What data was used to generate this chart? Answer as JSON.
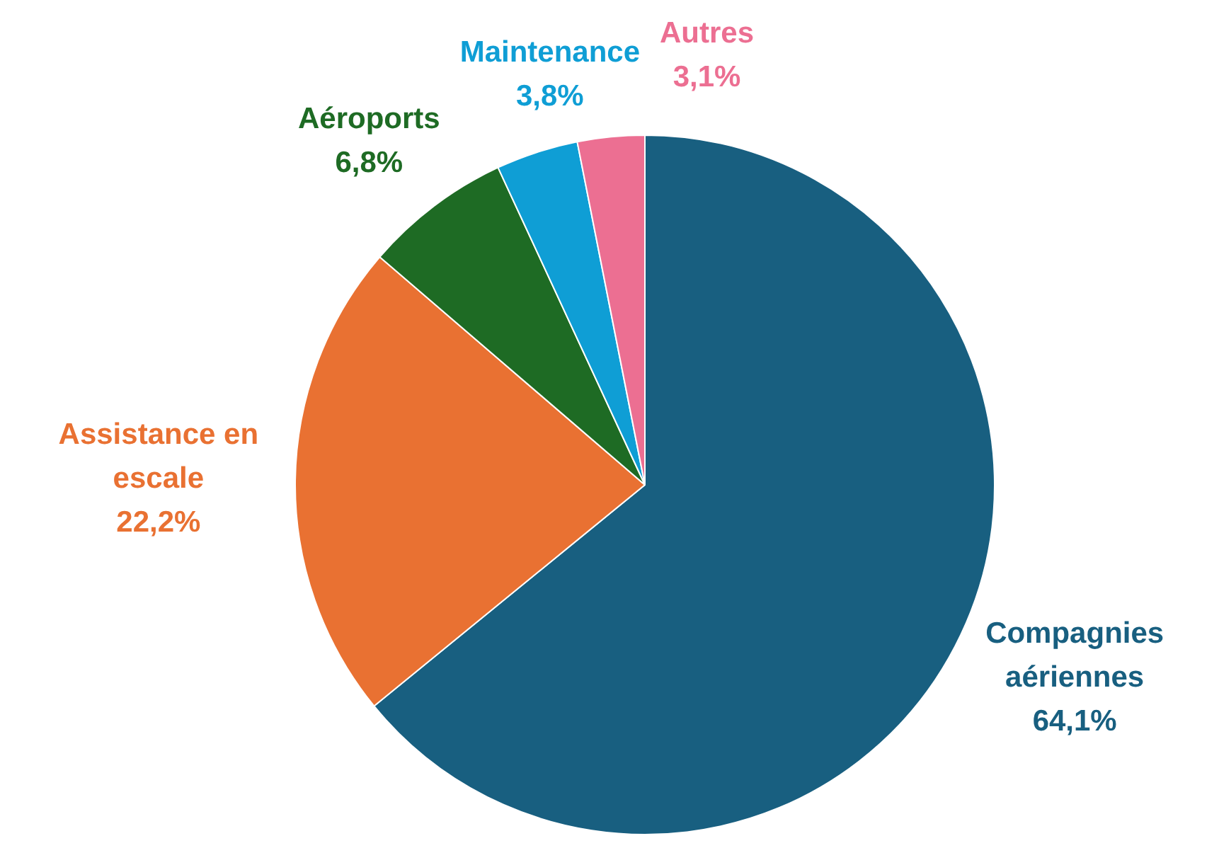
{
  "chart_data": {
    "type": "pie",
    "categories": [
      "Compagnies aériennes",
      "Assistance en escale",
      "Aéroports",
      "Maintenance",
      "Autres"
    ],
    "values": [
      64.1,
      22.2,
      6.8,
      3.8,
      3.1
    ],
    "value_labels": [
      "64,1%",
      "22,2%",
      "6,8%",
      "3,8%",
      "3,1%"
    ],
    "colors": [
      "#185f80",
      "#e97132",
      "#1e6b24",
      "#0f9ed5",
      "#ec6f92"
    ],
    "legend": false
  }
}
